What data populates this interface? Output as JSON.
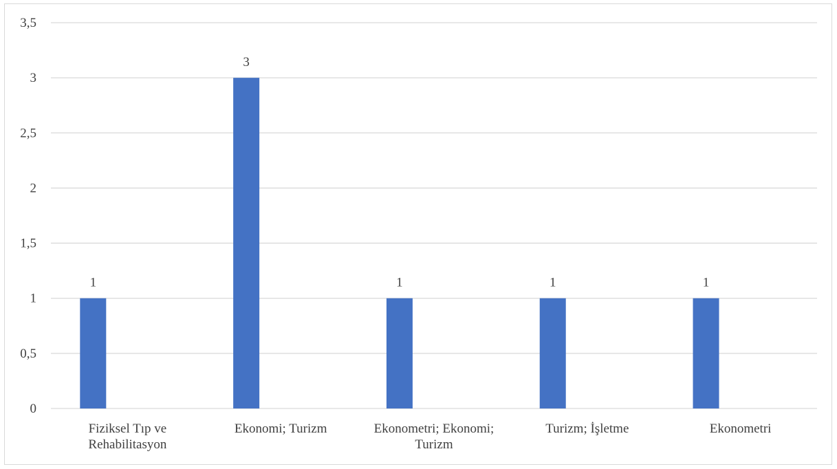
{
  "chart_data": {
    "type": "bar",
    "categories": [
      [
        "Fiziksel Tıp ve",
        "Rehabilitasyon"
      ],
      [
        "Ekonomi; Turizm"
      ],
      [
        "Ekonometri; Ekonomi;",
        "Turizm"
      ],
      [
        "Turizm; İşletme"
      ],
      [
        "Ekonometri"
      ]
    ],
    "values": [
      1,
      3,
      1,
      1,
      1
    ],
    "data_labels": [
      "1",
      "3",
      "1",
      "1",
      "1"
    ],
    "ylim": [
      0,
      3.5
    ],
    "y_ticks": [
      "0",
      "0,5",
      "1",
      "1,5",
      "2",
      "2,5",
      "3",
      "3,5"
    ],
    "title": "",
    "xlabel": "",
    "ylabel": "",
    "grid": true,
    "legend": "none",
    "bar_color": "#4472c4",
    "grid_color": "#d9d9d9"
  }
}
